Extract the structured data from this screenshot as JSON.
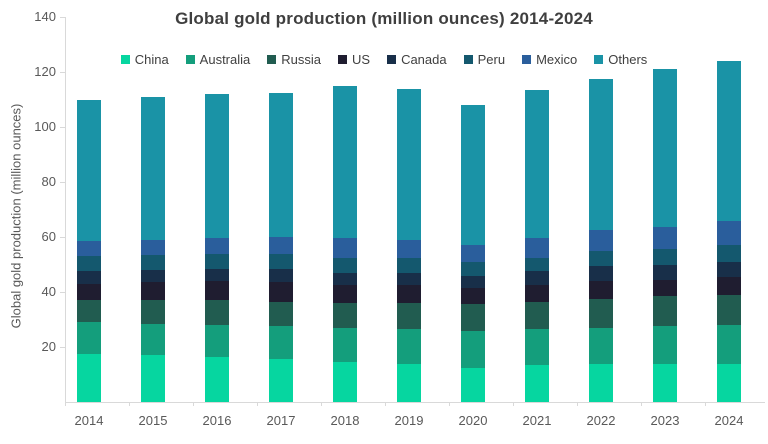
{
  "title": "Global gold production (million ounces) 2014-2024",
  "colors": {
    "background": "#FFFFFF",
    "title_text": "#3F3F3F",
    "axis_line": "#D9D9D9",
    "tick_label_text": "#595959",
    "legend_text": "#404040"
  },
  "chart_data": {
    "type": "bar",
    "stacked": true,
    "title": "Global gold production (million ounces) 2014-2024",
    "xlabel": "",
    "ylabel": "Global gold production (million ounces)",
    "ylim": [
      0,
      140
    ],
    "ytick_labels_shown": [
      20,
      40,
      60,
      80,
      100,
      120,
      140
    ],
    "grid": false,
    "legend_position": "top",
    "categories": [
      "2014",
      "2015",
      "2016",
      "2017",
      "2018",
      "2019",
      "2020",
      "2021",
      "2022",
      "2023",
      "2024"
    ],
    "series": [
      {
        "name": "China",
        "color": "#06D6A0",
        "values": [
          17.5,
          17,
          16.5,
          15.5,
          14.5,
          14,
          12.5,
          13.5,
          14,
          14,
          14
        ]
      },
      {
        "name": "Australia",
        "color": "#149E7C",
        "values": [
          11.5,
          11.5,
          11.5,
          12,
          12.5,
          12.5,
          13.5,
          13,
          13,
          13.5,
          14
        ]
      },
      {
        "name": "Russia",
        "color": "#215C50",
        "values": [
          8,
          8.5,
          9,
          9,
          9,
          9.5,
          9.5,
          10,
          10.5,
          11,
          11
        ]
      },
      {
        "name": "US",
        "color": "#1F1D30",
        "values": [
          6,
          6.5,
          7,
          7,
          6.5,
          6.5,
          6,
          6,
          6.5,
          6,
          6.5
        ]
      },
      {
        "name": "Canada",
        "color": "#182F49",
        "values": [
          4.5,
          4.5,
          4.5,
          5,
          4.5,
          4.5,
          4.5,
          5,
          5.5,
          5.5,
          5.5
        ]
      },
      {
        "name": "Peru",
        "color": "#14586E",
        "values": [
          5.5,
          5.5,
          5.5,
          5.5,
          5.5,
          5.5,
          5,
          5,
          5.5,
          5.5,
          6
        ]
      },
      {
        "name": "Mexico",
        "color": "#2A5E9C",
        "values": [
          5.5,
          5.5,
          5.5,
          6,
          7,
          6.5,
          6,
          7,
          7.5,
          8,
          9
        ]
      },
      {
        "name": "Others",
        "color": "#1A93A6",
        "values": [
          51.5,
          52,
          52.5,
          52.5,
          55.5,
          55,
          51,
          54,
          55,
          57.5,
          58
        ]
      }
    ],
    "stack_totals": [
      110,
      111,
      112,
      112.5,
      115,
      114,
      108,
      113.5,
      117.5,
      121,
      124
    ]
  }
}
